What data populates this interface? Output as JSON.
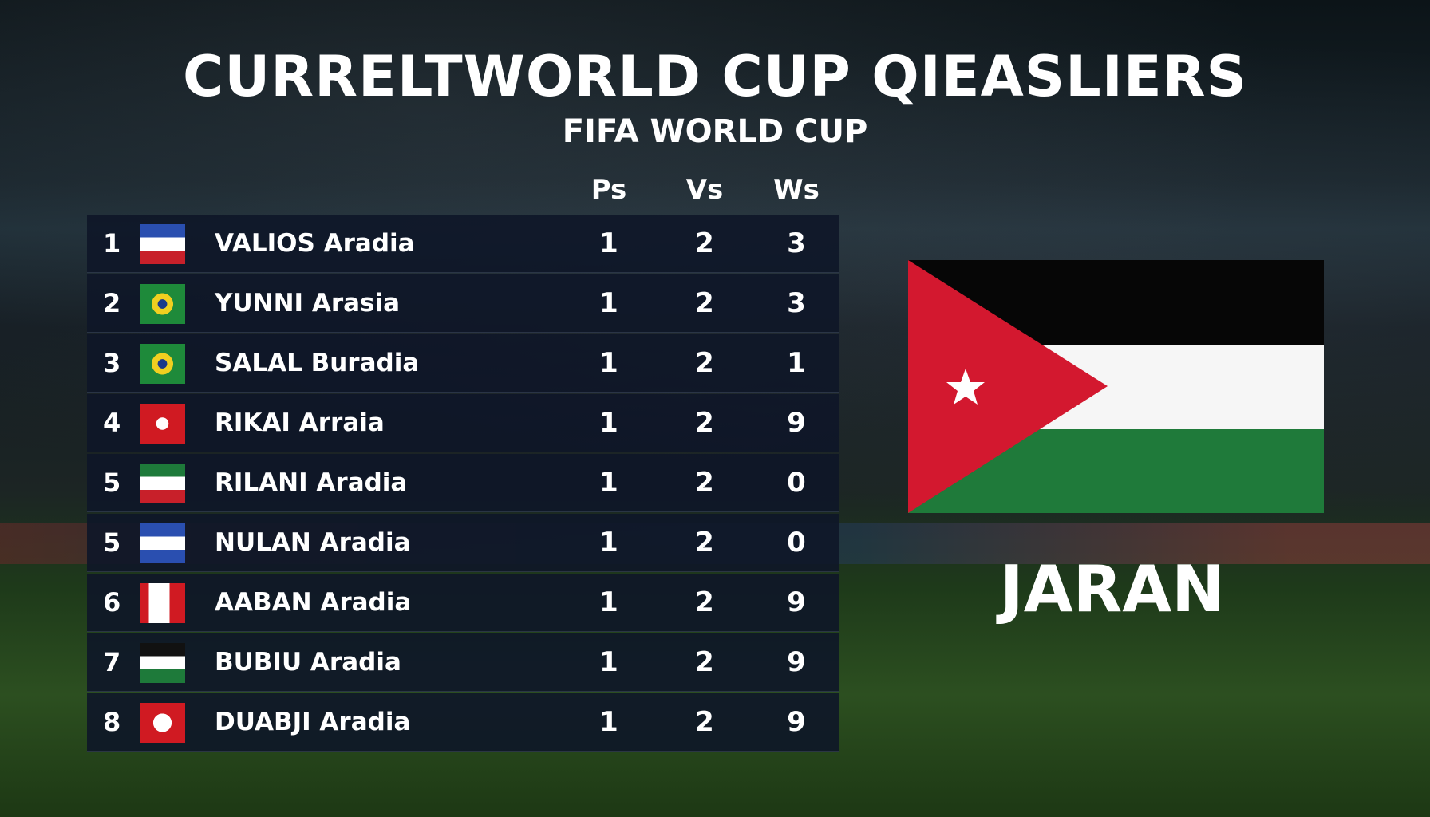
{
  "header": {
    "title": "CURRELTWORLD CUP QIEASLIERS",
    "subtitle": "FIFA WORLD CUP"
  },
  "table": {
    "columns": [
      "Ps",
      "Vs",
      "Ws"
    ],
    "rows": [
      {
        "rank": 1,
        "team": "VALIOS Aradia",
        "ps": 1,
        "vs": 2,
        "ws": 3
      },
      {
        "rank": 2,
        "team": "YUNNI Arasia",
        "ps": 1,
        "vs": 2,
        "ws": 3
      },
      {
        "rank": 3,
        "team": "SALAL Buradia",
        "ps": 1,
        "vs": 2,
        "ws": 1
      },
      {
        "rank": 4,
        "team": "RIKAI Arraia",
        "ps": 1,
        "vs": 2,
        "ws": 9
      },
      {
        "rank": 5,
        "team": "RILANI Aradia",
        "ps": 1,
        "vs": 2,
        "ws": 0
      },
      {
        "rank": 5,
        "team": "NULAN Aradia",
        "ps": 1,
        "vs": 2,
        "ws": 0
      },
      {
        "rank": 6,
        "team": "AABAN Aradia",
        "ps": 1,
        "vs": 2,
        "ws": 9
      },
      {
        "rank": 7,
        "team": "BUBIU Aradia",
        "ps": 1,
        "vs": 2,
        "ws": 9
      },
      {
        "rank": 8,
        "team": "DUABJI Aradia",
        "ps": 1,
        "vs": 2,
        "ws": 9
      }
    ]
  },
  "featured": {
    "name": "JARAN"
  }
}
